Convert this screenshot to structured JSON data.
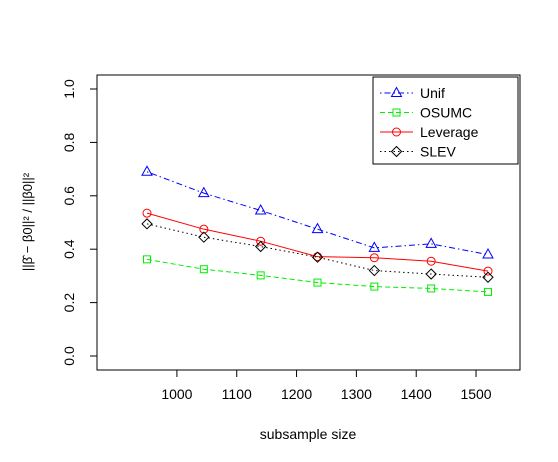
{
  "chart_data": {
    "type": "line",
    "xlabel": "subsample size",
    "ylabel": "||β̂ − β0||² / ||β0||²",
    "xlim": [
      900,
      1550
    ],
    "ylim": [
      0.0,
      1.0
    ],
    "x_ticks": [
      1000,
      1100,
      1200,
      1300,
      1400,
      1500
    ],
    "y_ticks": [
      0.0,
      0.2,
      0.4,
      0.6,
      0.8,
      1.0
    ],
    "y_tick_labels": [
      "0.0",
      "0.2",
      "0.4",
      "0.6",
      "0.8",
      "1.0"
    ],
    "x": [
      950,
      1045,
      1140,
      1235,
      1330,
      1425,
      1520
    ],
    "legend_position": "top-right",
    "series": [
      {
        "name": "Unif",
        "color": "#0000ff",
        "dash": "dotdash",
        "marker": "triangle",
        "values": [
          0.69,
          0.61,
          0.545,
          0.475,
          0.405,
          0.42,
          0.38
        ]
      },
      {
        "name": "OSUMC",
        "color": "#00ee00",
        "dash": "dashed",
        "marker": "square",
        "values": [
          0.362,
          0.325,
          0.302,
          0.275,
          0.26,
          0.253,
          0.24
        ]
      },
      {
        "name": "Leverage",
        "color": "#ff0000",
        "dash": "solid",
        "marker": "circle",
        "values": [
          0.535,
          0.475,
          0.43,
          0.372,
          0.368,
          0.355,
          0.318
        ]
      },
      {
        "name": "SLEV",
        "color": "#000000",
        "dash": "dotted",
        "marker": "diamond",
        "values": [
          0.495,
          0.445,
          0.41,
          0.37,
          0.32,
          0.307,
          0.295
        ]
      }
    ]
  }
}
